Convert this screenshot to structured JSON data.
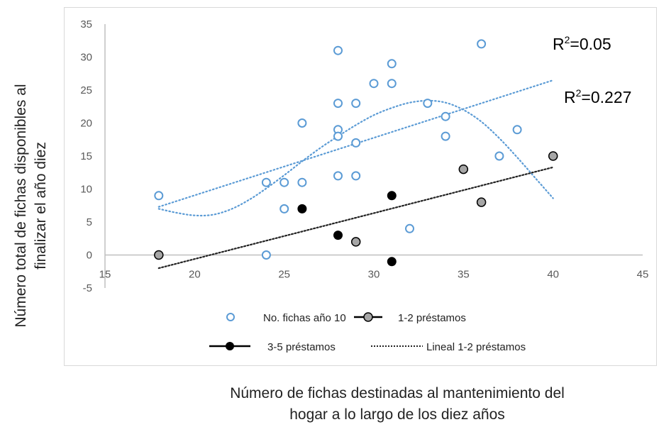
{
  "chart_data": {
    "type": "scatter",
    "xlabel_lines": [
      "Número de fichas destinadas al mantenimiento del",
      "hogar a lo largo de los diez años"
    ],
    "ylabel_lines": [
      "Número total de fichas disponibles al",
      "finalizar el año diez"
    ],
    "xlim": [
      15,
      45
    ],
    "ylim": [
      -5,
      35
    ],
    "x_ticks": [
      15,
      20,
      25,
      30,
      35,
      40,
      45
    ],
    "y_ticks": [
      35,
      30,
      25,
      20,
      15,
      10,
      5,
      0,
      -5
    ],
    "grid": false,
    "legend_position": "bottom",
    "colors": {
      "blue": "#5b9bd5",
      "gray": "#a6a6a6",
      "black": "#000000",
      "axis": "#bfbfbf"
    },
    "series": [
      {
        "name": "No. fichas año 10",
        "marker": "open-circle",
        "color": "#5b9bd5",
        "points": [
          [
            18,
            9
          ],
          [
            24,
            11
          ],
          [
            24,
            0
          ],
          [
            25,
            11
          ],
          [
            25,
            7
          ],
          [
            26,
            20
          ],
          [
            26,
            11
          ],
          [
            28,
            31
          ],
          [
            28,
            23
          ],
          [
            28,
            19
          ],
          [
            28,
            18
          ],
          [
            28,
            12
          ],
          [
            29,
            23
          ],
          [
            29,
            17
          ],
          [
            29,
            12
          ],
          [
            30,
            26
          ],
          [
            31,
            29
          ],
          [
            31,
            26
          ],
          [
            32,
            4
          ],
          [
            33,
            23
          ],
          [
            34,
            21
          ],
          [
            34,
            18
          ],
          [
            36,
            32
          ],
          [
            37,
            15
          ],
          [
            38,
            19
          ]
        ]
      },
      {
        "name": "1-2 préstamos",
        "marker": "gray-circle",
        "color": "#a6a6a6",
        "points": [
          [
            18,
            0
          ],
          [
            29,
            2
          ],
          [
            35,
            13
          ],
          [
            36,
            8
          ],
          [
            40,
            15
          ]
        ]
      },
      {
        "name": "3-5 préstamos",
        "marker": "black-circle",
        "color": "#000000",
        "points": [
          [
            26,
            7
          ],
          [
            28,
            3
          ],
          [
            31,
            9
          ],
          [
            31,
            -1
          ]
        ]
      },
      {
        "name": "Lineal 1-2 préstamos",
        "type": "trendline-linear",
        "color": "#000000",
        "points": [
          [
            18,
            -2
          ],
          [
            40,
            13.3
          ]
        ]
      }
    ],
    "blue_trend_linear": [
      [
        18,
        7.3
      ],
      [
        40,
        26.5
      ]
    ],
    "blue_trend_poly": [
      [
        18,
        7
      ],
      [
        19,
        6.4
      ],
      [
        20,
        6
      ],
      [
        21,
        6.1
      ],
      [
        22,
        6.9
      ],
      [
        23,
        8.3
      ],
      [
        24,
        10.1
      ],
      [
        25,
        12.1
      ],
      [
        26,
        14.2
      ],
      [
        27,
        16.2
      ],
      [
        28,
        18
      ],
      [
        29,
        19.7
      ],
      [
        30,
        21.2
      ],
      [
        31,
        22.3
      ],
      [
        32,
        23.1
      ],
      [
        33,
        23.4
      ],
      [
        34,
        23.1
      ],
      [
        35,
        22
      ],
      [
        36,
        20.2
      ],
      [
        37,
        17.7
      ],
      [
        38,
        14.8
      ],
      [
        39,
        11.7
      ],
      [
        40,
        8.6
      ]
    ],
    "annotations": [
      {
        "text_main": "R",
        "sup": "2",
        "text_rest": "=0.05"
      },
      {
        "text_main": "R",
        "sup": "2",
        "text_rest": "=0.227"
      }
    ]
  }
}
